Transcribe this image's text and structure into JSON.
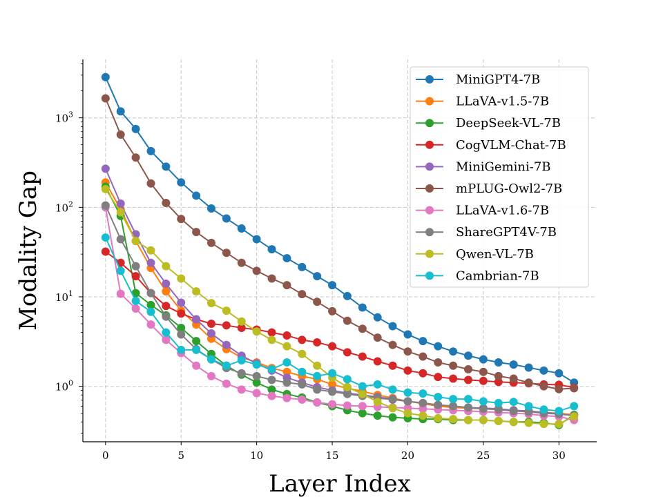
{
  "chart_data": {
    "type": "line",
    "title": "",
    "xlabel": "Layer Index",
    "ylabel": "Modality Gap",
    "yscale": "log",
    "xlim": [
      -1.5,
      32.5
    ],
    "ylim": [
      0.24,
      4500
    ],
    "grid": true,
    "legend_position": "top-right",
    "x_ticks": [
      0,
      5,
      10,
      15,
      20,
      25,
      30
    ],
    "y_ticks": [
      {
        "value": 1,
        "base": "10",
        "exp": "0"
      },
      {
        "value": 10,
        "base": "10",
        "exp": "1"
      },
      {
        "value": 100,
        "base": "10",
        "exp": "2"
      },
      {
        "value": 1000,
        "base": "10",
        "exp": "3"
      }
    ],
    "x": [
      0,
      1,
      2,
      3,
      4,
      5,
      6,
      7,
      8,
      9,
      10,
      11,
      12,
      13,
      14,
      15,
      16,
      17,
      18,
      19,
      20,
      21,
      22,
      23,
      24,
      25,
      26,
      27,
      28,
      29,
      30,
      31
    ],
    "series": [
      {
        "name": "MiniGPT4-7B",
        "color": "#1f77b4",
        "values": [
          2850,
          1180,
          750,
          425,
          285,
          190,
          135,
          97,
          75,
          58,
          44,
          34,
          27,
          21.5,
          17,
          13.5,
          10.2,
          7.6,
          5.9,
          4.7,
          3.8,
          3.2,
          2.8,
          2.45,
          2.2,
          2.0,
          1.85,
          1.75,
          1.62,
          1.5,
          1.4,
          1.1
        ]
      },
      {
        "name": "LLaVA-v1.5-7B",
        "color": "#ff7f0e",
        "values": [
          190,
          95,
          42,
          21,
          11.5,
          7.0,
          4.9,
          3.4,
          2.6,
          2.1,
          1.85,
          1.6,
          1.45,
          1.3,
          1.2,
          1.05,
          0.95,
          0.88,
          0.8,
          0.74,
          0.68,
          0.64,
          0.6,
          0.58,
          0.57,
          0.56,
          0.55,
          0.54,
          0.52,
          0.51,
          0.5,
          0.48
        ]
      },
      {
        "name": "DeepSeek-VL-7B",
        "color": "#2ca02c",
        "values": [
          170,
          80,
          11,
          8.1,
          6.2,
          4.5,
          3.2,
          2.3,
          1.7,
          1.35,
          1.1,
          0.92,
          0.82,
          0.75,
          0.66,
          0.6,
          0.54,
          0.5,
          0.47,
          0.45,
          0.44,
          0.43,
          0.43,
          0.42,
          0.42,
          0.42,
          0.41,
          0.4,
          0.4,
          0.39,
          0.37,
          0.48
        ]
      },
      {
        "name": "CogVLM-Chat-7B",
        "color": "#d62728",
        "values": [
          32,
          24,
          17,
          11,
          7.9,
          6.5,
          5.6,
          5.0,
          4.8,
          4.5,
          4.3,
          4.0,
          3.7,
          3.3,
          3.1,
          2.8,
          2.4,
          2.15,
          1.9,
          1.7,
          1.5,
          1.4,
          1.27,
          1.22,
          1.18,
          1.15,
          1.12,
          1.1,
          1.08,
          1.05,
          1.04,
          0.97
        ]
      },
      {
        "name": "MiniGemini-7B",
        "color": "#9467bd",
        "values": [
          270,
          110,
          50,
          24,
          14,
          8.6,
          5.6,
          3.9,
          2.9,
          2.2,
          1.8,
          1.5,
          1.25,
          1.1,
          0.98,
          0.9,
          0.84,
          0.8,
          0.76,
          0.72,
          0.68,
          0.65,
          0.62,
          0.6,
          0.58,
          0.57,
          0.56,
          0.54,
          0.53,
          0.51,
          0.49,
          0.47
        ]
      },
      {
        "name": "mPLUG-Owl2-7B",
        "color": "#8c564b",
        "values": [
          1650,
          650,
          360,
          185,
          112,
          74,
          53,
          40,
          31,
          24,
          19.5,
          16,
          13.5,
          10.7,
          8.8,
          6.9,
          5.4,
          4.4,
          3.5,
          2.9,
          2.45,
          2.15,
          1.85,
          1.7,
          1.55,
          1.45,
          1.3,
          1.22,
          1.1,
          1.0,
          0.93,
          0.95
        ]
      },
      {
        "name": "LLaVA-v1.6-7B",
        "color": "#e377c2",
        "values": [
          100,
          10.8,
          7.4,
          4.9,
          3.3,
          2.35,
          1.7,
          1.3,
          1.07,
          0.92,
          0.84,
          0.78,
          0.74,
          0.71,
          0.66,
          0.63,
          0.61,
          0.6,
          0.59,
          0.58,
          0.57,
          0.56,
          0.55,
          0.54,
          0.53,
          0.52,
          0.51,
          0.5,
          0.49,
          0.47,
          0.46,
          0.42
        ]
      },
      {
        "name": "ShareGPT4V-7B",
        "color": "#7f7f7f",
        "values": [
          105,
          44,
          22,
          11,
          6.0,
          3.8,
          2.6,
          2.0,
          1.6,
          1.4,
          1.3,
          1.18,
          1.1,
          1.05,
          0.92,
          0.87,
          0.82,
          0.78,
          0.74,
          0.71,
          0.68,
          0.65,
          0.62,
          0.6,
          0.58,
          0.56,
          0.55,
          0.53,
          0.52,
          0.5,
          0.49,
          0.47
        ]
      },
      {
        "name": "Qwen-VL-7B",
        "color": "#bcbd22",
        "values": [
          160,
          88,
          42,
          33,
          22,
          16,
          11.5,
          8.5,
          7.0,
          5.3,
          4.1,
          3.3,
          2.8,
          2.3,
          1.7,
          1.25,
          0.98,
          0.82,
          0.67,
          0.57,
          0.5,
          0.47,
          0.44,
          0.43,
          0.42,
          0.42,
          0.41,
          0.4,
          0.39,
          0.38,
          0.38,
          0.46
        ]
      },
      {
        "name": "Cambrian-7B",
        "color": "#17becf",
        "values": [
          46,
          19.5,
          9.0,
          6.8,
          4.0,
          2.55,
          2.55,
          2.0,
          1.7,
          1.95,
          1.75,
          1.55,
          1.85,
          1.45,
          1.3,
          1.4,
          1.2,
          1.0,
          1.05,
          0.92,
          0.85,
          0.83,
          0.76,
          0.72,
          0.72,
          0.68,
          0.65,
          0.67,
          0.6,
          0.55,
          0.53,
          0.6
        ]
      }
    ]
  }
}
